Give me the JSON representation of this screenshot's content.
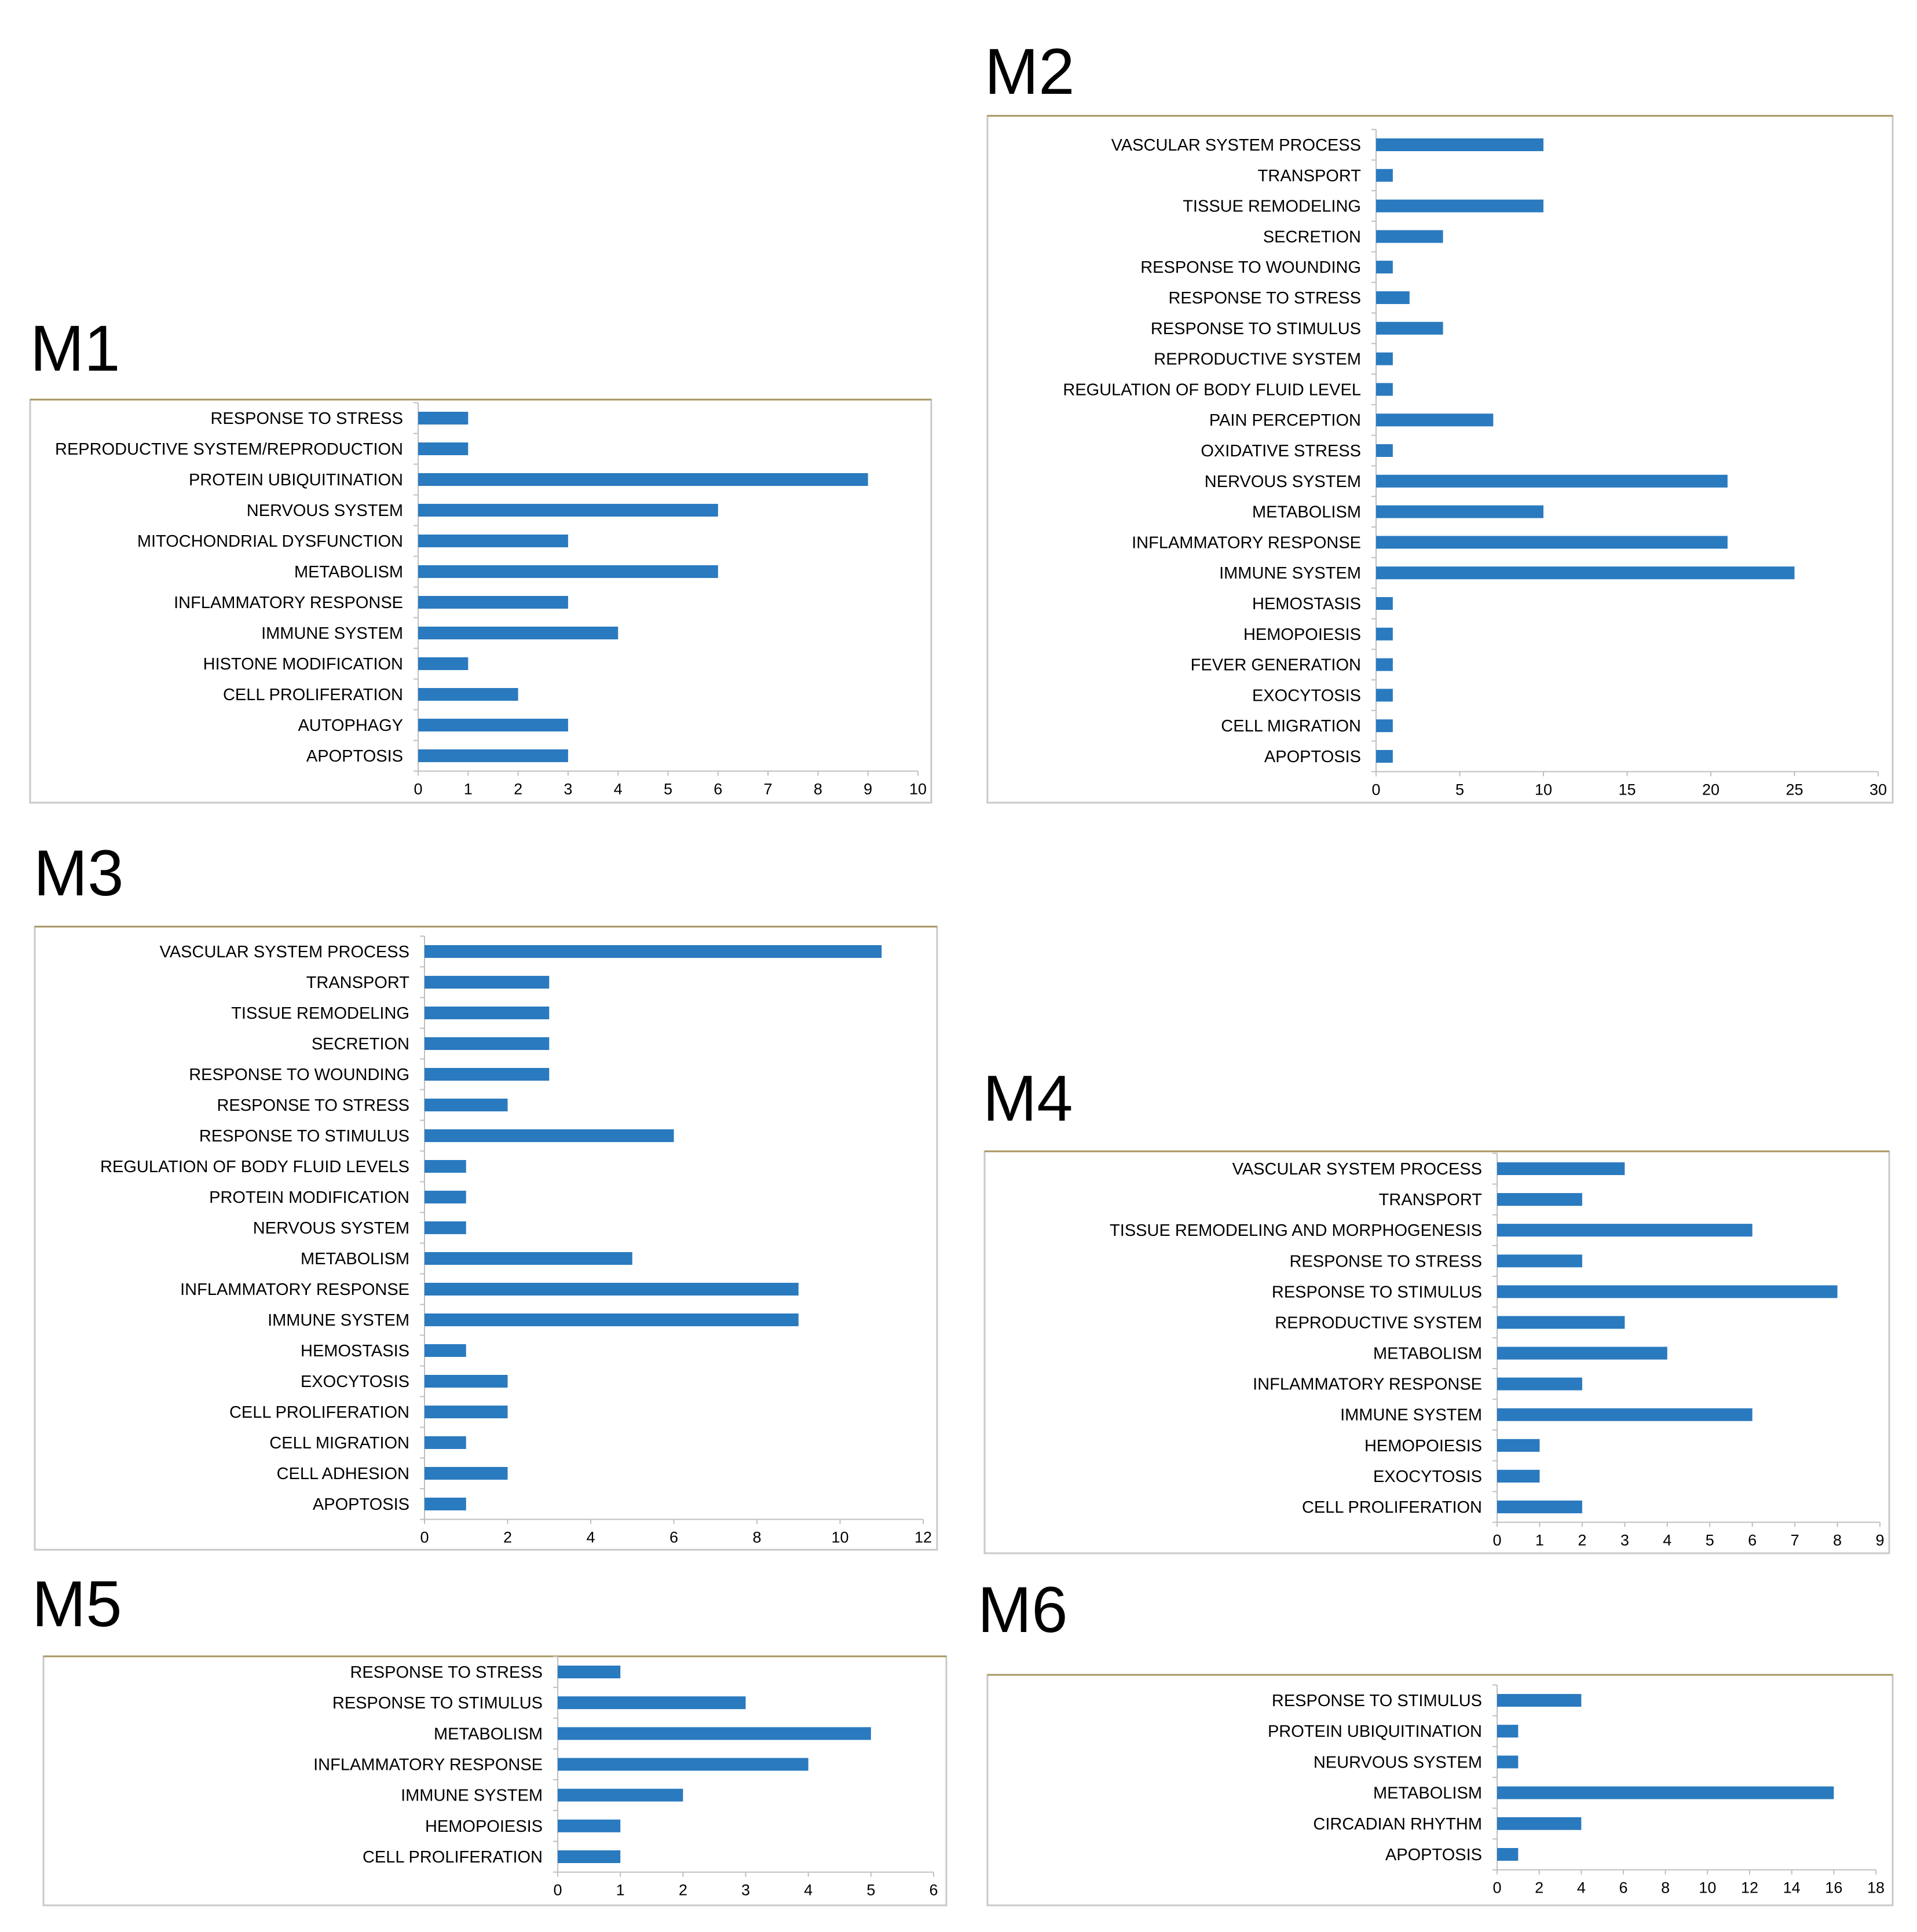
{
  "bar_color": "#2a7abf",
  "chart_data": [
    {
      "id": "M1",
      "type": "bar",
      "orientation": "horizontal",
      "title": "M1",
      "categories": [
        "RESPONSE TO STRESS",
        "REPRODUCTIVE SYSTEM/REPRODUCTION",
        "PROTEIN UBIQUITINATION",
        "NERVOUS SYSTEM",
        "MITOCHONDRIAL DYSFUNCTION",
        "METABOLISM",
        "INFLAMMATORY RESPONSE",
        "IMMUNE SYSTEM",
        "HISTONE MODIFICATION",
        "CELL PROLIFERATION",
        "AUTOPHAGY",
        "APOPTOSIS"
      ],
      "values": [
        1,
        1,
        9,
        6,
        3,
        6,
        3,
        4,
        1,
        2,
        3,
        3
      ],
      "xlim": [
        0,
        10
      ],
      "ticks": [
        0,
        1,
        2,
        3,
        4,
        5,
        6,
        7,
        8,
        9,
        10
      ]
    },
    {
      "id": "M2",
      "type": "bar",
      "orientation": "horizontal",
      "title": "M2",
      "categories": [
        "VASCULAR SYSTEM PROCESS",
        "TRANSPORT",
        "TISSUE REMODELING",
        "SECRETION",
        "RESPONSE TO WOUNDING",
        "RESPONSE TO STRESS",
        "RESPONSE TO STIMULUS",
        "REPRODUCTIVE SYSTEM",
        "REGULATION OF BODY FLUID LEVEL",
        "PAIN PERCEPTION",
        "OXIDATIVE STRESS",
        "NERVOUS SYSTEM",
        "METABOLISM",
        "INFLAMMATORY RESPONSE",
        "IMMUNE SYSTEM",
        "HEMOSTASIS",
        "HEMOPOIESIS",
        "FEVER GENERATION",
        "EXOCYTOSIS",
        "CELL MIGRATION",
        "APOPTOSIS"
      ],
      "values": [
        10,
        1,
        10,
        4,
        1,
        2,
        4,
        1,
        1,
        7,
        1,
        21,
        10,
        21,
        25,
        1,
        1,
        1,
        1,
        1,
        1
      ],
      "xlim": [
        0,
        30
      ],
      "ticks": [
        0,
        5,
        10,
        15,
        20,
        25,
        30
      ]
    },
    {
      "id": "M3",
      "type": "bar",
      "orientation": "horizontal",
      "title": "M3",
      "categories": [
        "VASCULAR SYSTEM PROCESS",
        "TRANSPORT",
        "TISSUE REMODELING",
        "SECRETION",
        "RESPONSE TO WOUNDING",
        "RESPONSE TO STRESS",
        "RESPONSE TO STIMULUS",
        "REGULATION OF BODY FLUID LEVELS",
        "PROTEIN MODIFICATION",
        "NERVOUS SYSTEM",
        "METABOLISM",
        "INFLAMMATORY RESPONSE",
        "IMMUNE SYSTEM",
        "HEMOSTASIS",
        "EXOCYTOSIS",
        "CELL PROLIFERATION",
        "CELL MIGRATION",
        "CELL ADHESION",
        "APOPTOSIS"
      ],
      "values": [
        11,
        3,
        3,
        3,
        3,
        2,
        6,
        1,
        1,
        1,
        5,
        9,
        9,
        1,
        2,
        2,
        1,
        2,
        1
      ],
      "xlim": [
        0,
        12
      ],
      "ticks": [
        0,
        2,
        4,
        6,
        8,
        10,
        12
      ]
    },
    {
      "id": "M4",
      "type": "bar",
      "orientation": "horizontal",
      "title": "M4",
      "categories": [
        "VASCULAR SYSTEM PROCESS",
        "TRANSPORT",
        "TISSUE REMODELING AND MORPHOGENESIS",
        "RESPONSE TO STRESS",
        "RESPONSE TO STIMULUS",
        "REPRODUCTIVE SYSTEM",
        "METABOLISM",
        "INFLAMMATORY RESPONSE",
        "IMMUNE SYSTEM",
        "HEMOPOIESIS",
        "EXOCYTOSIS",
        "CELL PROLIFERATION"
      ],
      "values": [
        3,
        2,
        6,
        2,
        8,
        3,
        4,
        2,
        6,
        1,
        1,
        2
      ],
      "xlim": [
        0,
        9
      ],
      "ticks": [
        0,
        1,
        2,
        3,
        4,
        5,
        6,
        7,
        8,
        9
      ]
    },
    {
      "id": "M5",
      "type": "bar",
      "orientation": "horizontal",
      "title": "M5",
      "categories": [
        "RESPONSE TO STRESS",
        "RESPONSE TO STIMULUS",
        "METABOLISM",
        "INFLAMMATORY RESPONSE",
        "IMMUNE SYSTEM",
        "HEMOPOIESIS",
        "CELL PROLIFERATION"
      ],
      "values": [
        1,
        3,
        5,
        4,
        2,
        1,
        1
      ],
      "xlim": [
        0,
        6
      ],
      "ticks": [
        0,
        1,
        2,
        3,
        4,
        5,
        6
      ]
    },
    {
      "id": "M6",
      "type": "bar",
      "orientation": "horizontal",
      "title": "M6",
      "categories": [
        "RESPONSE TO STIMULUS",
        "PROTEIN UBIQUITINATION",
        "NEURVOUS SYSTEM",
        "METABOLISM",
        "CIRCADIAN RHYTHM",
        "APOPTOSIS"
      ],
      "values": [
        4,
        1,
        1,
        16,
        4,
        1
      ],
      "xlim": [
        0,
        18
      ],
      "ticks": [
        0,
        2,
        4,
        6,
        8,
        10,
        12,
        14,
        16,
        18
      ]
    }
  ]
}
